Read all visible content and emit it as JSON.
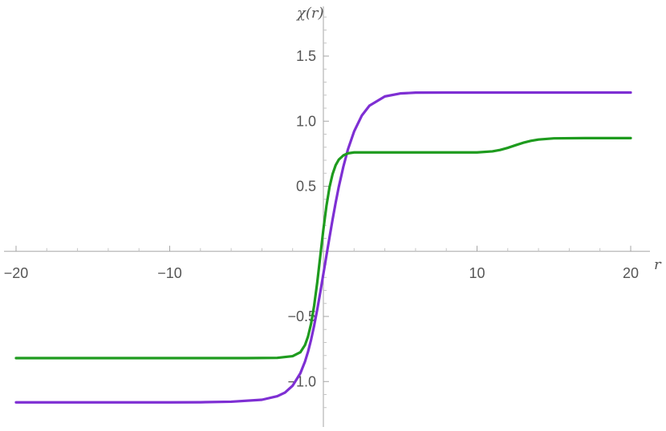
{
  "chart_data": {
    "type": "line",
    "title": "",
    "xlabel": "r",
    "ylabel": "χ(r)",
    "xlim": [
      -20,
      20
    ],
    "ylim": [
      -1.3,
      1.9
    ],
    "grid": false,
    "legend": "none",
    "x_ticks": [
      -20,
      -10,
      10,
      20
    ],
    "x_tick_labels": [
      "−20",
      "−10",
      "10",
      "20"
    ],
    "y_ticks": [
      -1.0,
      -0.5,
      0.5,
      1.0,
      1.5
    ],
    "y_tick_labels": [
      "−1.0",
      "−0.5",
      "0.5",
      "1.0",
      "1.5"
    ],
    "series": [
      {
        "color": "#7e2fd3",
        "x": [
          -20,
          -15,
          -10,
          -8,
          -6,
          -4,
          -3,
          -2.5,
          -2,
          -1.5,
          -1.2,
          -1.0,
          -0.8,
          -0.6,
          -0.4,
          -0.2,
          0,
          0.2,
          0.4,
          0.6,
          0.8,
          1.0,
          1.3,
          1.6,
          2,
          2.5,
          3,
          4,
          5,
          6,
          8,
          10,
          15,
          20
        ],
        "y": [
          -1.16,
          -1.16,
          -1.16,
          -1.159,
          -1.155,
          -1.14,
          -1.113,
          -1.085,
          -1.032,
          -0.937,
          -0.848,
          -0.772,
          -0.679,
          -0.57,
          -0.447,
          -0.314,
          -0.173,
          -0.032,
          0.108,
          0.245,
          0.374,
          0.494,
          0.65,
          0.784,
          0.921,
          1.043,
          1.119,
          1.19,
          1.213,
          1.219,
          1.22,
          1.22,
          1.22,
          1.22
        ]
      },
      {
        "color": "#1e9b1e",
        "x": [
          -20,
          -10,
          -5,
          -3,
          -2,
          -1.5,
          -1.2,
          -1.0,
          -0.8,
          -0.6,
          -0.4,
          -0.2,
          0,
          0.2,
          0.4,
          0.6,
          0.8,
          1.0,
          1.3,
          1.6,
          2,
          3,
          5,
          8,
          10,
          11,
          11.5,
          12,
          12.5,
          13,
          13.5,
          14,
          15,
          17,
          20
        ],
        "y": [
          -0.82,
          -0.82,
          -0.82,
          -0.818,
          -0.805,
          -0.775,
          -0.721,
          -0.655,
          -0.556,
          -0.417,
          -0.24,
          -0.036,
          0.167,
          0.349,
          0.493,
          0.594,
          0.662,
          0.704,
          0.737,
          0.753,
          0.76,
          0.76,
          0.76,
          0.76,
          0.76,
          0.768,
          0.779,
          0.795,
          0.815,
          0.834,
          0.849,
          0.859,
          0.868,
          0.87,
          0.87
        ]
      }
    ]
  }
}
